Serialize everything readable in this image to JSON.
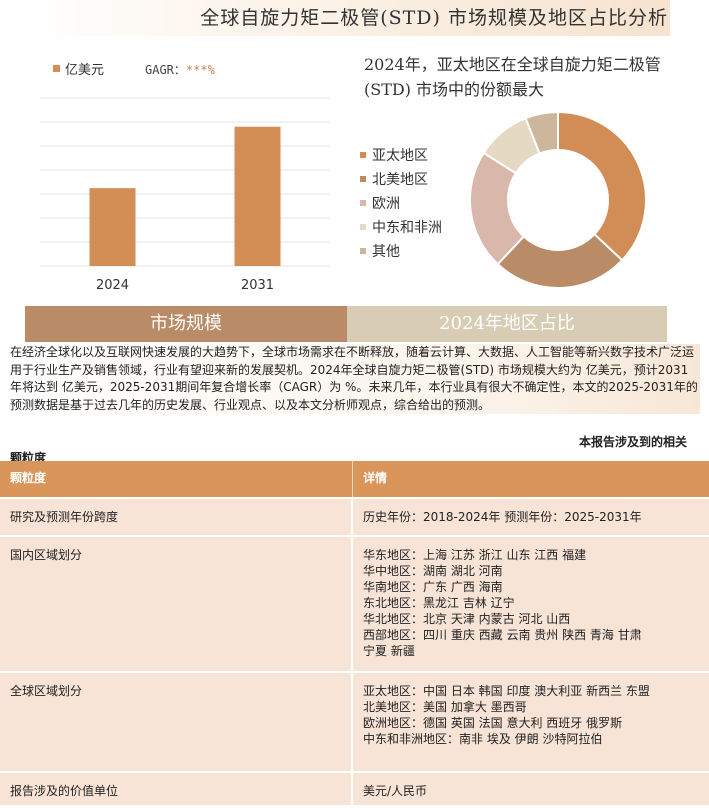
{
  "title": "全球自旋力矩二极管(STD) 市场规模及地区占比分析",
  "bar_legend": {
    "label": "亿美元",
    "cagr_label": "GAGR：",
    "cagr_value": "***%"
  },
  "chart_data": [
    {
      "type": "bar",
      "categories": [
        "2024",
        "2031"
      ],
      "values": [
        38,
        68
      ],
      "ylim": [
        0,
        82
      ],
      "grid": true,
      "color": "#d38e55",
      "legend": [
        "亿美元"
      ]
    },
    {
      "type": "pie",
      "labels": [
        "亚太地区",
        "北美地区",
        "欧洲",
        "中东和非洲",
        "其他"
      ],
      "values": [
        37,
        25,
        22,
        10,
        6
      ],
      "colors": [
        "#d28d57",
        "#b98b67",
        "#d9b7ab",
        "#e5d9c4",
        "#cdb79c"
      ],
      "title": "2024年，亚太地区在全球自旋力矩二极管(STD) 市场中的份额最大"
    }
  ],
  "section_labels": {
    "left": "市场规模",
    "right": "2024年地区占比"
  },
  "intro_text": "在经济全球化以及互联网快速发展的大趋势下，全球市场需求在不断释放，随着云计算、大数据、人工智能等新兴数字技术广泛运用于行业生产及销售领域，行业有望迎来新的发展契机。2024年全球自旋力矩二极管(STD) 市场规模大约为 亿美元，预计2031年将达到 亿美元，2025-2031期间年复合增长率（CAGR）为 %。未来几年，本行业具有很大不确定性，本文的2025-2031年的预测数据是基于过去几年的历史发展、行业观点、以及本文分析师观点，综合给出的预测。",
  "related_label": "本报告涉及到的相关",
  "granularity_heading": "颗粒度",
  "table": {
    "headers": [
      "颗粒度",
      "详情"
    ],
    "rows": [
      {
        "label": "研究及预测年份跨度",
        "lines": [
          "历史年份：2018-2024年 预测年份：2025-2031年"
        ]
      },
      {
        "label": "国内区域划分",
        "lines": [
          "华东地区：上海  江苏  浙江   山东  江西  福建",
          "华中地区：湖南  湖北  河南",
          "华南地区：广东  广西  海南",
          "东北地区：黑龙江  吉林  辽宁",
          "华北地区：北京  天津  内蒙古  河北  山西",
          "西部地区：四川  重庆  西藏  云南  贵州  陕西  青海  甘肃",
          "宁夏  新疆"
        ]
      },
      {
        "label": "全球区域划分",
        "lines": [
          "亚太地区：中国  日本  韩国  印度  澳大利亚  新西兰  东盟",
          "北美地区：美国  加拿大  墨西哥",
          "欧洲地区：德国  英国  法国  意大利  西班牙  俄罗斯",
          "中东和非洲地区：南非  埃及  伊朗  沙特阿拉伯"
        ]
      },
      {
        "label": "报告涉及的价值单位",
        "lines": [
          "美元/人民币"
        ]
      }
    ]
  }
}
